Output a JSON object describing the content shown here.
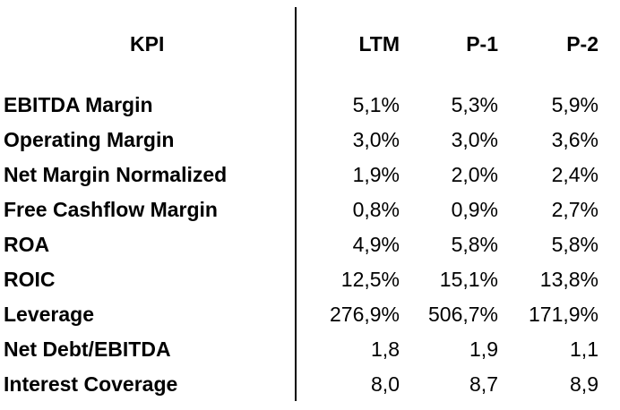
{
  "table": {
    "headers": {
      "kpi": "KPI",
      "ltm": "LTM",
      "p1": "P-1",
      "p2": "P-2"
    },
    "rows": [
      {
        "label": "EBITDA Margin",
        "ltm": "5,1%",
        "p1": "5,3%",
        "p2": "5,9%"
      },
      {
        "label": "Operating Margin",
        "ltm": "3,0%",
        "p1": "3,0%",
        "p2": "3,6%"
      },
      {
        "label": "Net Margin Normalized",
        "ltm": "1,9%",
        "p1": "2,0%",
        "p2": "2,4%"
      },
      {
        "label": "Free Cashflow Margin",
        "ltm": "0,8%",
        "p1": "0,9%",
        "p2": "2,7%"
      },
      {
        "label": "ROA",
        "ltm": "4,9%",
        "p1": "5,8%",
        "p2": "5,8%"
      },
      {
        "label": "ROIC",
        "ltm": "12,5%",
        "p1": "15,1%",
        "p2": "13,8%"
      },
      {
        "label": "Leverage",
        "ltm": "276,9%",
        "p1": "506,7%",
        "p2": "171,9%"
      },
      {
        "label": "Net Debt/EBITDA",
        "ltm": "1,8",
        "p1": "1,9",
        "p2": "1,1"
      },
      {
        "label": "Interest Coverage",
        "ltm": "8,0",
        "p1": "8,7",
        "p2": "8,9"
      }
    ]
  }
}
